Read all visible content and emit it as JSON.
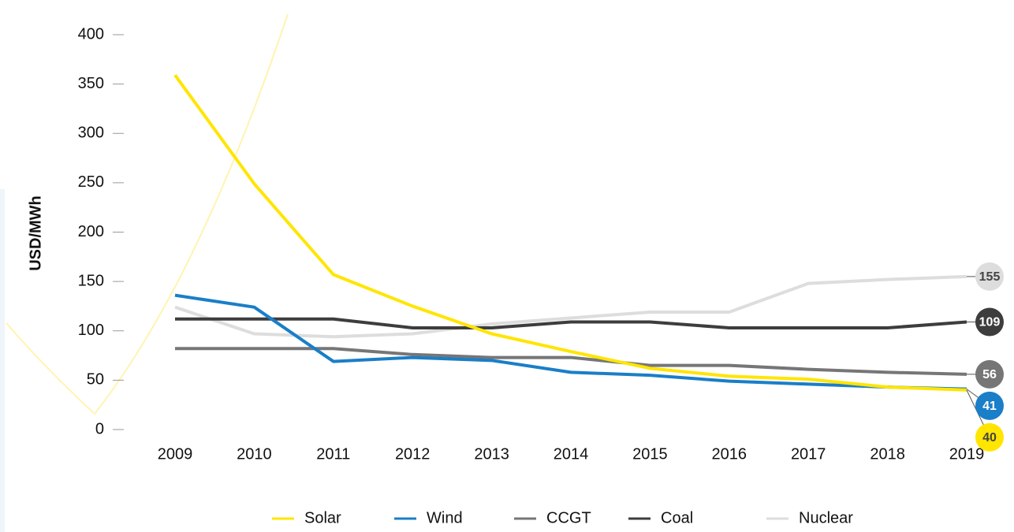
{
  "chart_data": {
    "type": "line",
    "y_label": "USD/MWh",
    "x": [
      "2009",
      "2010",
      "2011",
      "2012",
      "2013",
      "2014",
      "2015",
      "2016",
      "2017",
      "2018",
      "2019"
    ],
    "series": [
      {
        "name": "Solar",
        "color": "#ffe500",
        "values": [
          359,
          249,
          157,
          125,
          97,
          79,
          62,
          54,
          51,
          43,
          40
        ]
      },
      {
        "name": "Wind",
        "color": "#1a7ec8",
        "values": [
          136,
          124,
          69,
          73,
          70,
          58,
          55,
          49,
          46,
          43,
          41
        ]
      },
      {
        "name": "CCGT",
        "color": "#767676",
        "values": [
          82,
          82,
          82,
          76,
          73,
          73,
          65,
          65,
          61,
          58,
          56
        ]
      },
      {
        "name": "Coal",
        "color": "#3d3d3d",
        "values": [
          112,
          112,
          112,
          103,
          103,
          109,
          109,
          103,
          103,
          103,
          109
        ]
      },
      {
        "name": "Nuclear",
        "color": "#dddddd",
        "values": [
          124,
          97,
          94,
          97,
          107,
          113,
          119,
          119,
          148,
          152,
          155
        ]
      }
    ],
    "ylim": [
      0,
      400
    ],
    "yticks": [
      0,
      50,
      100,
      150,
      200,
      250,
      300,
      350,
      400
    ]
  }
}
